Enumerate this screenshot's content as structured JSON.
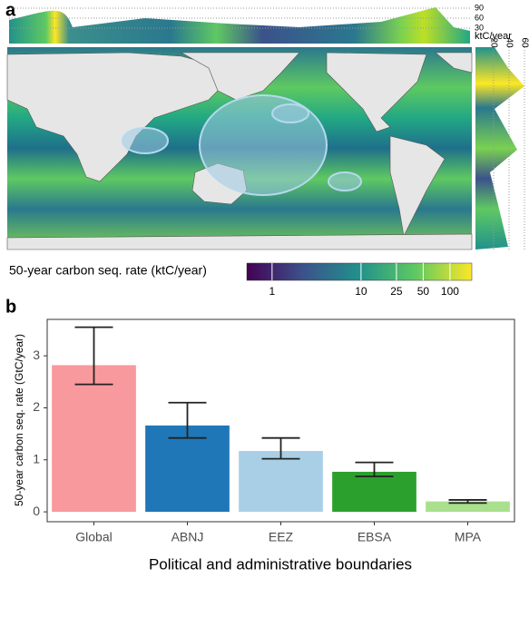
{
  "panel_labels": [
    "a",
    "b"
  ],
  "map": {
    "top_margin": {
      "axis_label": "ktC/year",
      "ticks": [
        30,
        60,
        90
      ]
    },
    "right_margin": {
      "ticks": [
        20,
        40,
        60
      ]
    },
    "colorbar": {
      "label": "50-year carbon seq. rate (ktC/year)",
      "scale": "log",
      "lim": [
        0.52,
        176
      ],
      "ticks": [
        1,
        10,
        25,
        50,
        100
      ],
      "colors": [
        "#440154",
        "#3b528b",
        "#21918c",
        "#5ec962",
        "#fde725"
      ]
    }
  },
  "chart_data": {
    "type": "bar",
    "xlabel": "Political and administrative boundaries",
    "ylabel": "50-year carbon seq. rate (GtC/year)",
    "categories": [
      "Global",
      "ABNJ",
      "EEZ",
      "EBSA",
      "MPA"
    ],
    "values": [
      2.82,
      1.66,
      1.17,
      0.77,
      0.2
    ],
    "ci_low": [
      2.45,
      1.42,
      1.02,
      0.68,
      0.17
    ],
    "ci_high": [
      3.55,
      2.1,
      1.42,
      0.95,
      0.23
    ],
    "colors": [
      "#f8999e",
      "#1f77b8",
      "#a8cfe6",
      "#2ca02c",
      "#a9df8d"
    ],
    "ylim": [
      -0.19,
      3.7
    ],
    "yticks": [
      0,
      1,
      2,
      3
    ]
  }
}
